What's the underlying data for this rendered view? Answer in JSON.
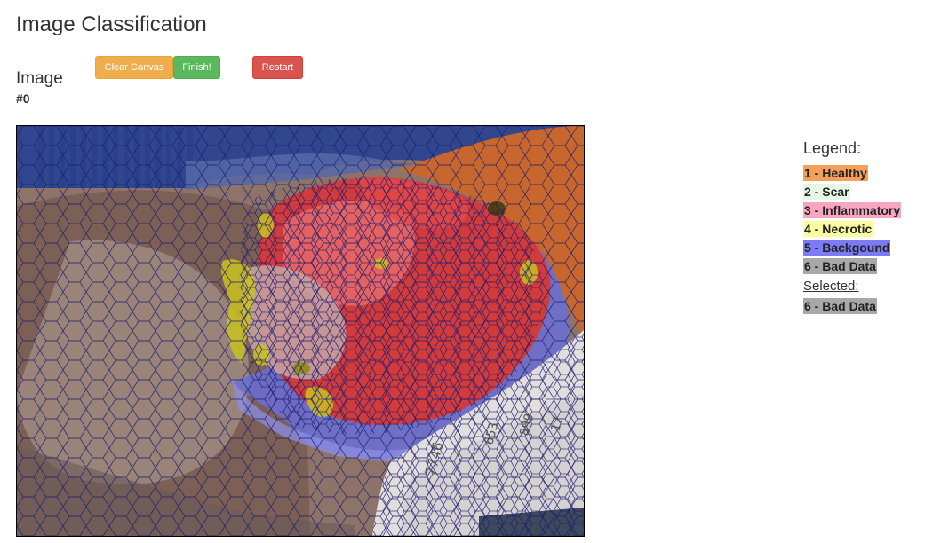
{
  "page": {
    "title": "Image Classification",
    "image_label": "Image",
    "image_id": "#0"
  },
  "toolbar": {
    "clear_label": "Clear Canvas",
    "finish_label": "Finish!",
    "restart_label": "Restart"
  },
  "legend": {
    "title": "Legend:",
    "items": [
      {
        "label": "1 - Healthy",
        "color": "#f5a05a"
      },
      {
        "label": "2 - Scar",
        "color": "#e6f7e6"
      },
      {
        "label": "3 - Inflammatory",
        "color": "#f7a6bf"
      },
      {
        "label": "4 - Necrotic",
        "color": "#fbfba0"
      },
      {
        "label": "5 - Backgound",
        "color": "#7b7bf5"
      },
      {
        "label": "6 - Bad Data",
        "color": "#a8a8a8"
      }
    ],
    "selected_title": "Selected:",
    "selected": {
      "label": "6 - Bad Data",
      "color": "#a8a8a8"
    }
  }
}
